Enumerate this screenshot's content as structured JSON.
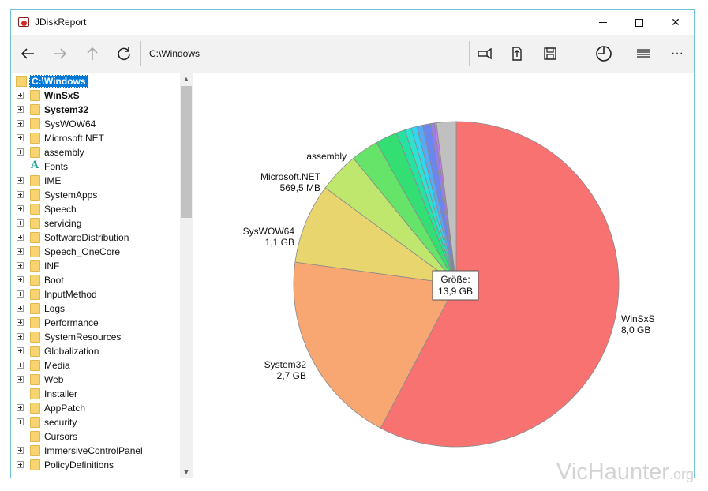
{
  "window": {
    "title": "JDiskReport",
    "minimize_label": "–",
    "close_label": "✕"
  },
  "toolbar": {
    "path": "C:\\Windows",
    "more_label": "···",
    "icons": [
      "back-arrow-icon",
      "forward-arrow-icon",
      "up-arrow-icon",
      "refresh-icon",
      "flashlight-icon",
      "export-icon",
      "save-icon",
      "pie-chart-icon",
      "list-icon",
      "more-icon"
    ]
  },
  "tree": {
    "root": "C:\\Windows",
    "items": [
      {
        "label": "WinSxS",
        "bold": true,
        "expander": true,
        "icon": "folder"
      },
      {
        "label": "System32",
        "bold": true,
        "expander": true,
        "icon": "folder"
      },
      {
        "label": "SysWOW64",
        "bold": false,
        "expander": true,
        "icon": "folder"
      },
      {
        "label": "Microsoft.NET",
        "bold": false,
        "expander": true,
        "icon": "folder"
      },
      {
        "label": "assembly",
        "bold": false,
        "expander": true,
        "icon": "folder"
      },
      {
        "label": "Fonts",
        "bold": false,
        "expander": false,
        "icon": "font"
      },
      {
        "label": "IME",
        "bold": false,
        "expander": true,
        "icon": "folder"
      },
      {
        "label": "SystemApps",
        "bold": false,
        "expander": true,
        "icon": "folder"
      },
      {
        "label": "Speech",
        "bold": false,
        "expander": true,
        "icon": "folder"
      },
      {
        "label": "servicing",
        "bold": false,
        "expander": true,
        "icon": "folder"
      },
      {
        "label": "SoftwareDistribution",
        "bold": false,
        "expander": true,
        "icon": "folder"
      },
      {
        "label": "Speech_OneCore",
        "bold": false,
        "expander": true,
        "icon": "folder"
      },
      {
        "label": "INF",
        "bold": false,
        "expander": true,
        "icon": "folder"
      },
      {
        "label": "Boot",
        "bold": false,
        "expander": true,
        "icon": "folder"
      },
      {
        "label": "InputMethod",
        "bold": false,
        "expander": true,
        "icon": "folder"
      },
      {
        "label": "Logs",
        "bold": false,
        "expander": true,
        "icon": "folder"
      },
      {
        "label": "Performance",
        "bold": false,
        "expander": true,
        "icon": "folder"
      },
      {
        "label": "SystemResources",
        "bold": false,
        "expander": true,
        "icon": "folder"
      },
      {
        "label": "Globalization",
        "bold": false,
        "expander": true,
        "icon": "folder"
      },
      {
        "label": "Media",
        "bold": false,
        "expander": true,
        "icon": "folder"
      },
      {
        "label": "Web",
        "bold": false,
        "expander": true,
        "icon": "folder"
      },
      {
        "label": "Installer",
        "bold": false,
        "expander": false,
        "icon": "folder"
      },
      {
        "label": "AppPatch",
        "bold": false,
        "expander": true,
        "icon": "folder"
      },
      {
        "label": "security",
        "bold": false,
        "expander": true,
        "icon": "folder"
      },
      {
        "label": "Cursors",
        "bold": false,
        "expander": false,
        "icon": "folder"
      },
      {
        "label": "ImmersiveControlPanel",
        "bold": false,
        "expander": true,
        "icon": "folder"
      },
      {
        "label": "PolicyDefinitions",
        "bold": false,
        "expander": true,
        "icon": "folder"
      }
    ]
  },
  "chart_data": {
    "type": "pie",
    "center_label": [
      "Größe:",
      "13,9 GB"
    ],
    "slices": [
      {
        "name": "WinSxS",
        "size_text": "8,0 GB",
        "value_gb": 8.0,
        "color": "#f87272"
      },
      {
        "name": "System32",
        "size_text": "2,7 GB",
        "value_gb": 2.7,
        "color": "#f8a672"
      },
      {
        "name": "SysWOW64",
        "size_text": "1,1 GB",
        "value_gb": 1.1,
        "color": "#e8d56e"
      },
      {
        "name": "Microsoft.NET",
        "size_text": "569,5 MB",
        "value_gb": 0.556,
        "color": "#bfe76d"
      },
      {
        "name": "assembly",
        "size_text": "",
        "value_gb": 0.38,
        "color": "#66e46a"
      },
      {
        "name": "",
        "size_text": "",
        "value_gb": 0.3,
        "color": "#33df72"
      },
      {
        "name": "",
        "size_text": "",
        "value_gb": 0.12,
        "color": "#28e0a0"
      },
      {
        "name": "",
        "size_text": "",
        "value_gb": 0.09,
        "color": "#2fe2cf"
      },
      {
        "name": "",
        "size_text": "",
        "value_gb": 0.08,
        "color": "#36d3ee"
      },
      {
        "name": "",
        "size_text": "",
        "value_gb": 0.08,
        "color": "#5aa8f2"
      },
      {
        "name": "",
        "size_text": "",
        "value_gb": 0.11,
        "color": "#6c86f0"
      },
      {
        "name": "",
        "size_text": "",
        "value_gb": 0.05,
        "color": "#9b7cf0"
      },
      {
        "name": "",
        "size_text": "",
        "value_gb": 0.03,
        "color": "#c37ce8"
      },
      {
        "name": "",
        "size_text": "",
        "value_gb": 0.27,
        "color": "#c0c0c0"
      }
    ]
  },
  "watermark": {
    "text": "VicHaunter",
    "suffix": ".org"
  }
}
